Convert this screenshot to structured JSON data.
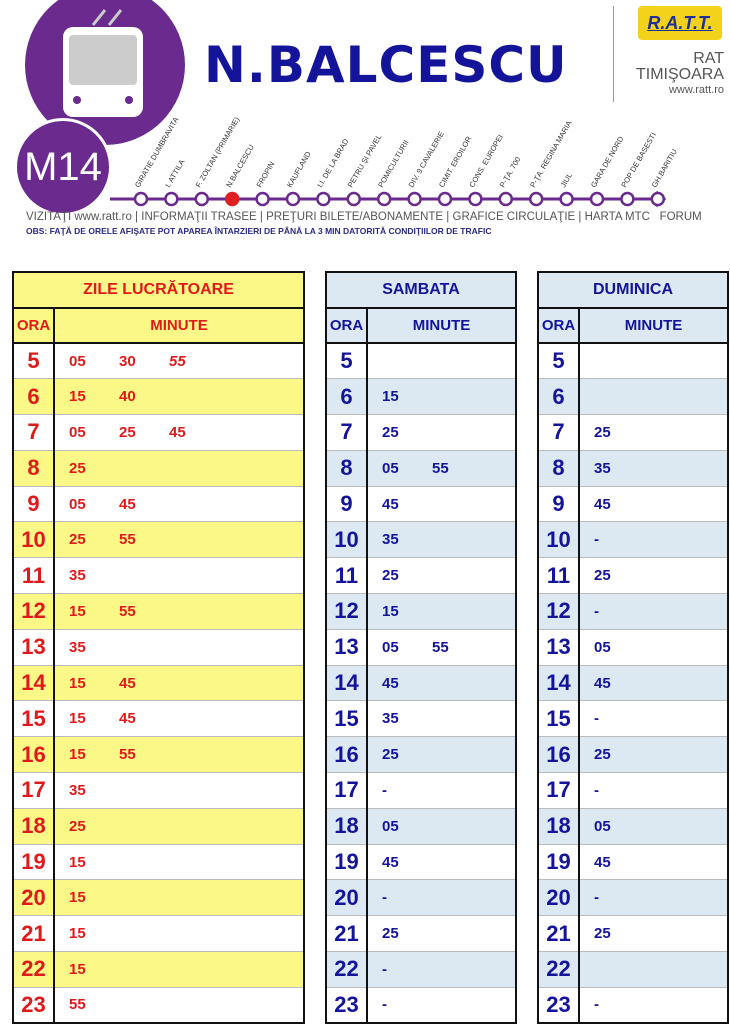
{
  "header": {
    "line": "M14",
    "station": "N.BALCESCU",
    "logo_text": "R.A.T.T.",
    "company_line1": "RAT",
    "company_line2": "TIMIŞOARA",
    "company_url": "www.ratt.ro",
    "brand_color": "#6a2a8e",
    "current_stop": "N.BALCESCU"
  },
  "route": {
    "stops": [
      "GIRATIE DUMBRAVITA",
      "I. ATTILA",
      "F. ZOLTAN (PRIMARIE)",
      "N.BALCESCU",
      "FROPIN",
      "KAUFLAND",
      "I.I. DE LA BRAD",
      "PETRU ŞI PAVEL",
      "POMICULTURII",
      "DIV. 9 CAVALERIE",
      "CIMIT. EROILOR",
      "CONS. EUROPEI",
      "P-ŢA. 700",
      "P-ŢA. REGINA MARIA",
      "JIUL",
      "GARA DE NORD",
      "POP DE BASESTI",
      "GH.BARITIU"
    ]
  },
  "links": [
    "VIZITAŢI www.ratt.ro",
    "INFORMAŢII TRASEE",
    "PREŢURI BILETE/ABONAMENTE",
    "GRAFICE CIRCULAŢIE",
    "HARTA MTC",
    "FORUM"
  ],
  "notice": "OBS: FAŢĂ DE ORELE AFIŞATE POT APAREA ÎNTARZIERI DE PÂNĂ LA 3 MIN DATORITĂ CONDIŢIILOR DE TRAFIC",
  "schedules": [
    {
      "title": "ZILE LUCRĂTOARE",
      "hour_label": "ORA",
      "minutes_label": "MINUTE",
      "rows": [
        [
          "5",
          [
            "05",
            "30",
            "55"
          ]
        ],
        [
          "6",
          [
            "15",
            "40"
          ]
        ],
        [
          "7",
          [
            "05",
            "25",
            "45"
          ]
        ],
        [
          "8",
          [
            "25"
          ]
        ],
        [
          "9",
          [
            "05",
            "45"
          ]
        ],
        [
          "10",
          [
            "25",
            "55"
          ]
        ],
        [
          "11",
          [
            "35"
          ]
        ],
        [
          "12",
          [
            "15",
            "55"
          ]
        ],
        [
          "13",
          [
            "35"
          ]
        ],
        [
          "14",
          [
            "15",
            "45"
          ]
        ],
        [
          "15",
          [
            "15",
            "45"
          ]
        ],
        [
          "16",
          [
            "15",
            "55"
          ]
        ],
        [
          "17",
          [
            "35"
          ]
        ],
        [
          "18",
          [
            "25"
          ]
        ],
        [
          "19",
          [
            "15"
          ]
        ],
        [
          "20",
          [
            "15"
          ]
        ],
        [
          "21",
          [
            "15"
          ]
        ],
        [
          "22",
          [
            "15"
          ]
        ],
        [
          "23",
          [
            "55"
          ]
        ]
      ]
    },
    {
      "title": "SAMBATA",
      "hour_label": "ORA",
      "minutes_label": "MINUTE",
      "rows": [
        [
          "5",
          []
        ],
        [
          "6",
          [
            "15"
          ]
        ],
        [
          "7",
          [
            "25"
          ]
        ],
        [
          "8",
          [
            "05",
            "55"
          ]
        ],
        [
          "9",
          [
            "45"
          ]
        ],
        [
          "10",
          [
            "35"
          ]
        ],
        [
          "11",
          [
            "25"
          ]
        ],
        [
          "12",
          [
            "15"
          ]
        ],
        [
          "13",
          [
            "05",
            "55"
          ]
        ],
        [
          "14",
          [
            "45"
          ]
        ],
        [
          "15",
          [
            "35"
          ]
        ],
        [
          "16",
          [
            "25"
          ]
        ],
        [
          "17",
          [
            "-"
          ]
        ],
        [
          "18",
          [
            "05"
          ]
        ],
        [
          "19",
          [
            "45"
          ]
        ],
        [
          "20",
          [
            "-"
          ]
        ],
        [
          "21",
          [
            "25"
          ]
        ],
        [
          "22",
          [
            "-"
          ]
        ],
        [
          "23",
          [
            "-"
          ]
        ]
      ]
    },
    {
      "title": "DUMINICA",
      "hour_label": "ORA",
      "minutes_label": "MINUTE",
      "rows": [
        [
          "5",
          []
        ],
        [
          "6",
          []
        ],
        [
          "7",
          [
            "25"
          ]
        ],
        [
          "8",
          [
            "35"
          ]
        ],
        [
          "9",
          [
            "45"
          ]
        ],
        [
          "10",
          [
            "-"
          ]
        ],
        [
          "11",
          [
            "25"
          ]
        ],
        [
          "12",
          [
            "-"
          ]
        ],
        [
          "13",
          [
            "05"
          ]
        ],
        [
          "14",
          [
            "45"
          ]
        ],
        [
          "15",
          [
            "-"
          ]
        ],
        [
          "16",
          [
            "25"
          ]
        ],
        [
          "17",
          [
            "-"
          ]
        ],
        [
          "18",
          [
            "05"
          ]
        ],
        [
          "19",
          [
            "45"
          ]
        ],
        [
          "20",
          [
            "-"
          ]
        ],
        [
          "21",
          [
            "25"
          ]
        ],
        [
          "22",
          []
        ],
        [
          "23",
          [
            "-"
          ]
        ]
      ]
    }
  ]
}
